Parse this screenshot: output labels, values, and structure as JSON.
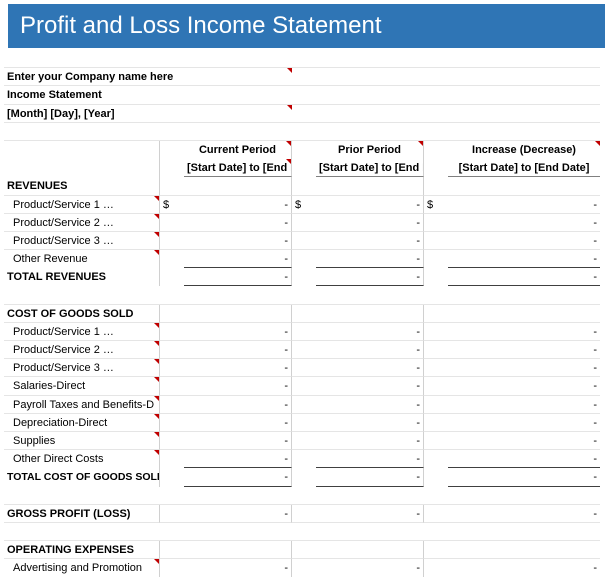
{
  "colors": {
    "title_bg": "#2f75b5",
    "title_fg": "#ffffff",
    "indicator": "#c00000",
    "gridline": "#d0d0d0",
    "text": "#000000"
  },
  "title": "Profit and Loss Income Statement",
  "header": {
    "company_placeholder": "Enter your Company name here",
    "subtitle": "Income Statement",
    "date_placeholder": "[Month] [Day], [Year]"
  },
  "columns": {
    "col1_title": "Current Period",
    "col1_range": "[Start Date] to [End Date]",
    "col2_title": "Prior Period",
    "col2_range": "[Start Date] to [End Date]",
    "col3_title": "Increase (Decrease)",
    "col3_range": "[Start Date] to [End Date]"
  },
  "sections": {
    "revenues": {
      "heading": "REVENUES",
      "rows": [
        {
          "label": "Product/Service 1 …",
          "c1_sym": "$",
          "c1": "-",
          "c2_sym": "$",
          "c2": "-",
          "c3_sym": "$",
          "c3": "-"
        },
        {
          "label": "Product/Service 2 …",
          "c1_sym": "",
          "c1": "-",
          "c2_sym": "",
          "c2": "-",
          "c3_sym": "",
          "c3": "-"
        },
        {
          "label": "Product/Service 3 …",
          "c1_sym": "",
          "c1": "-",
          "c2_sym": "",
          "c2": "-",
          "c3_sym": "",
          "c3": "-"
        },
        {
          "label": "Other Revenue",
          "c1_sym": "",
          "c1": "-",
          "c2_sym": "",
          "c2": "-",
          "c3_sym": "",
          "c3": "-"
        }
      ],
      "total_label": "TOTAL REVENUES",
      "total": {
        "c1": "-",
        "c2": "-",
        "c3": "-"
      }
    },
    "cogs": {
      "heading": "COST OF GOODS SOLD",
      "rows": [
        {
          "label": "Product/Service 1 …",
          "c1": "-",
          "c2": "-",
          "c3": "-"
        },
        {
          "label": "Product/Service 2 …",
          "c1": "-",
          "c2": "-",
          "c3": "-"
        },
        {
          "label": "Product/Service 3 …",
          "c1": "-",
          "c2": "-",
          "c3": "-"
        },
        {
          "label": "Salaries-Direct",
          "c1": "-",
          "c2": "-",
          "c3": "-"
        },
        {
          "label": "Payroll Taxes and Benefits-D",
          "c1": "-",
          "c2": "-",
          "c3": "-"
        },
        {
          "label": "Depreciation-Direct",
          "c1": "-",
          "c2": "-",
          "c3": "-"
        },
        {
          "label": "Supplies",
          "c1": "-",
          "c2": "-",
          "c3": "-"
        },
        {
          "label": "Other Direct Costs",
          "c1": "-",
          "c2": "-",
          "c3": "-"
        }
      ],
      "total_label": "TOTAL COST OF GOODS SOLD",
      "total": {
        "c1": "-",
        "c2": "-",
        "c3": "-"
      }
    },
    "gross": {
      "label": "GROSS PROFIT (LOSS)",
      "c1": "-",
      "c2": "-",
      "c3": "-"
    },
    "opex": {
      "heading": "OPERATING EXPENSES",
      "rows": [
        {
          "label": "Advertising and Promotion",
          "c1": "-",
          "c2": "-",
          "c3": "-"
        }
      ]
    }
  }
}
